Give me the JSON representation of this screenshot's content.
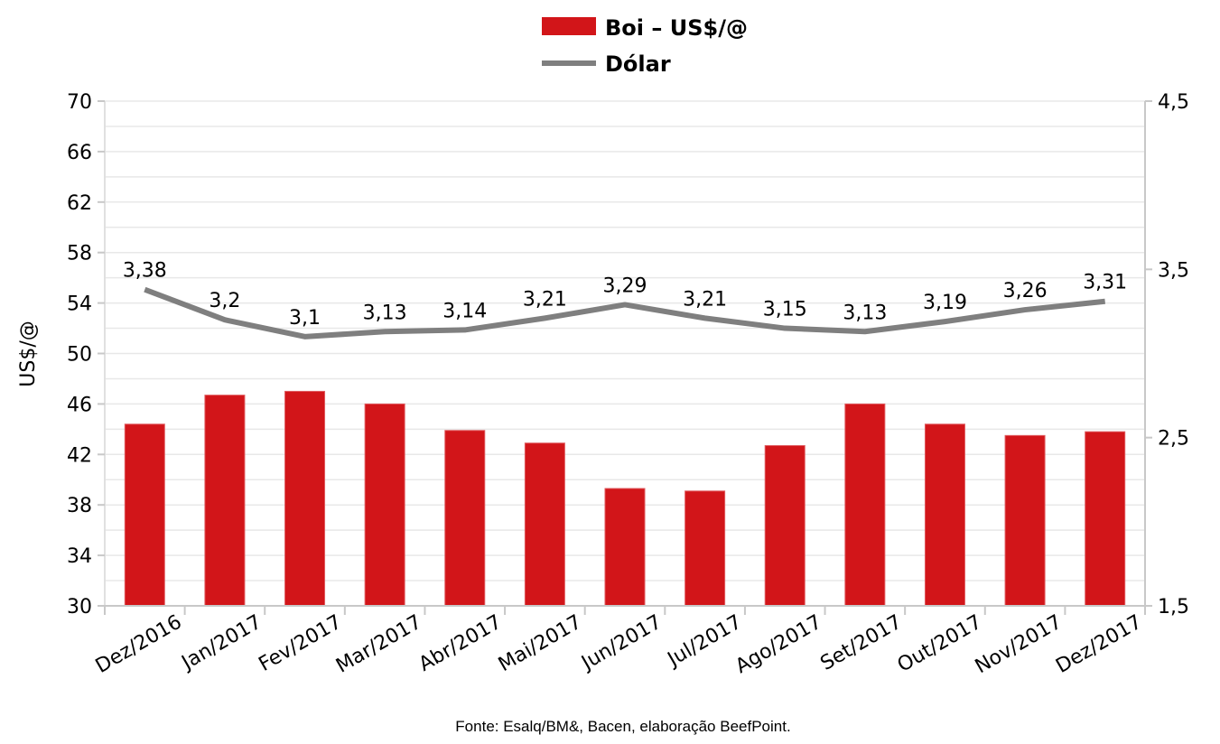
{
  "chart_data": {
    "type": "bar",
    "categories": [
      "Dez/2016",
      "Jan/2017",
      "Fev/2017",
      "Mar/2017",
      "Abr/2017",
      "Mai/2017",
      "Jun/2017",
      "Jul/2017",
      "Ago/2017",
      "Set/2017",
      "Out/2017",
      "Nov/2017",
      "Dez/2017"
    ],
    "series": [
      {
        "name": "Boi – US$/@",
        "type": "bar",
        "axis": "left",
        "color": "#d21519",
        "values": [
          44.4,
          46.7,
          47.0,
          46.0,
          43.9,
          42.9,
          39.3,
          39.1,
          42.7,
          46.0,
          44.4,
          43.5,
          43.8
        ]
      },
      {
        "name": "Dólar",
        "type": "line",
        "axis": "right",
        "color": "#7f7f7f",
        "values": [
          3.38,
          3.2,
          3.1,
          3.13,
          3.14,
          3.21,
          3.29,
          3.21,
          3.15,
          3.13,
          3.19,
          3.26,
          3.31
        ],
        "labels": [
          "3,38",
          "3,2",
          "3,1",
          "3,13",
          "3,14",
          "3,21",
          "3,29",
          "3,21",
          "3,15",
          "3,13",
          "3,19",
          "3,26",
          "3,31"
        ]
      }
    ],
    "ylabel": "US$/@",
    "ylim": [
      30,
      70
    ],
    "yticks": [
      "30",
      "34",
      "38",
      "42",
      "46",
      "50",
      "54",
      "58",
      "62",
      "66",
      "70"
    ],
    "y2lim": [
      1.5,
      4.5
    ],
    "y2ticks": [
      "1,5",
      "2,5",
      "3,5",
      "4,5"
    ],
    "grid": true,
    "legend": "top-center",
    "source": "Fonte:  Esalq/BM&,  Bacen,  elaboração  BeefPoint."
  }
}
